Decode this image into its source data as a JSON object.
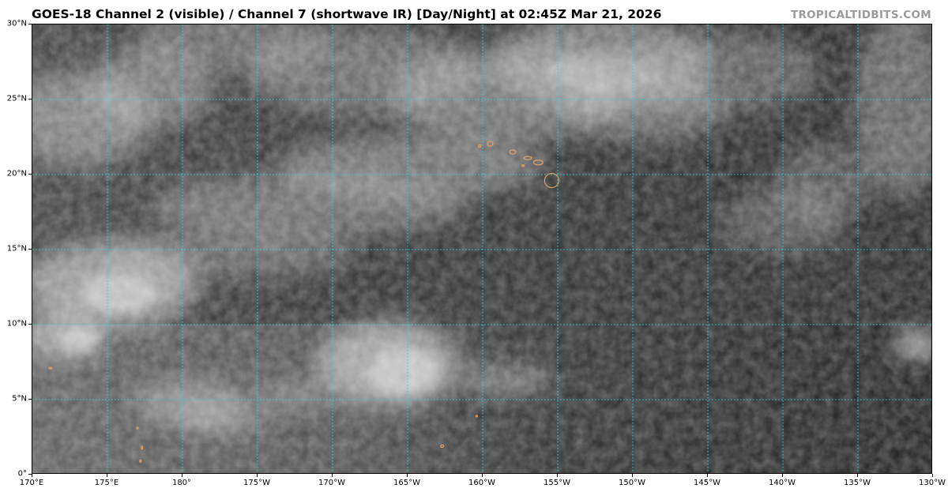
{
  "header": {
    "title": "GOES-18 Channel 2 (visible) / Channel 7 (shortwave IR) [Day/Night] at 02:45Z Mar 21, 2026",
    "credit": "TROPICALTIDBITS.COM"
  },
  "map": {
    "extent": {
      "lon_min": 170,
      "lon_max": 230,
      "lat_min": 0,
      "lat_max": 30
    },
    "grid_color": "#00e5e5",
    "coastline_color": "#e0a060",
    "lat_labels": [
      {
        "value": 0,
        "label": "0°"
      },
      {
        "value": 5,
        "label": "5°N"
      },
      {
        "value": 10,
        "label": "10°N"
      },
      {
        "value": 15,
        "label": "15°N"
      },
      {
        "value": 20,
        "label": "20°N"
      },
      {
        "value": 25,
        "label": "25°N"
      },
      {
        "value": 30,
        "label": "30°N"
      }
    ],
    "lon_labels": [
      {
        "value": 170,
        "label": "170°E"
      },
      {
        "value": 175,
        "label": "175°E"
      },
      {
        "value": 180,
        "label": "180°"
      },
      {
        "value": 185,
        "label": "175°W"
      },
      {
        "value": 190,
        "label": "170°W"
      },
      {
        "value": 195,
        "label": "165°W"
      },
      {
        "value": 200,
        "label": "160°W"
      },
      {
        "value": 205,
        "label": "155°W"
      },
      {
        "value": 210,
        "label": "150°W"
      },
      {
        "value": 215,
        "label": "145°W"
      },
      {
        "value": 220,
        "label": "140°W"
      },
      {
        "value": 225,
        "label": "135°W"
      },
      {
        "value": 230,
        "label": "130°W"
      }
    ]
  }
}
